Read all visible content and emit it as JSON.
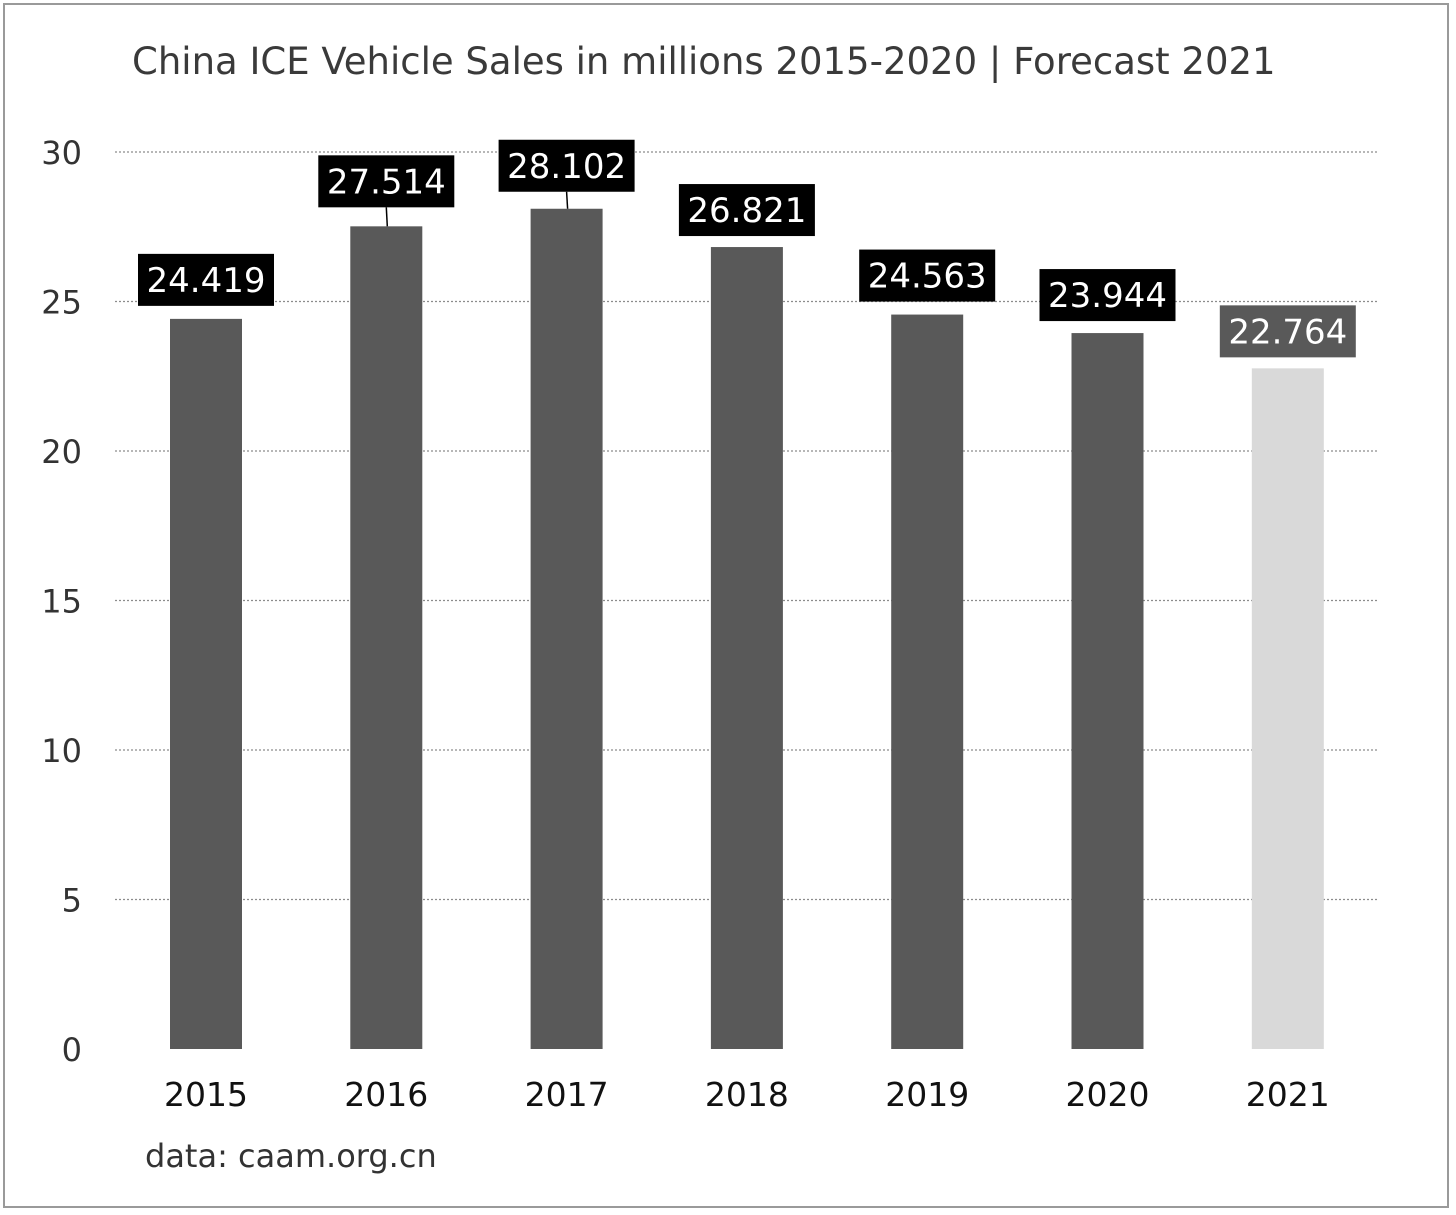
{
  "chart_data": {
    "type": "bar",
    "title": "China ICE Vehicle Sales in millions 2015-2020 | Forecast 2021",
    "source": "data: caam.org.cn",
    "categories": [
      "2015",
      "2016",
      "2017",
      "2018",
      "2019",
      "2020",
      "2021"
    ],
    "values": [
      24.419,
      27.514,
      28.102,
      26.821,
      24.563,
      23.944,
      22.764
    ],
    "value_labels": [
      "24.419",
      "27.514",
      "28.102",
      "26.821",
      "24.563",
      "23.944",
      "22.764"
    ],
    "forecast": [
      false,
      false,
      false,
      false,
      false,
      false,
      true
    ],
    "ylim": [
      0,
      30
    ],
    "yticks": [
      0,
      5,
      10,
      15,
      20,
      25,
      30
    ],
    "grid": true,
    "legend": "none",
    "colors": {
      "bar": "#595959",
      "forecast_bar": "#d9d9d9",
      "label_box": "#000000",
      "forecast_label_box": "#595959",
      "grid": "#8c8c8c"
    }
  }
}
